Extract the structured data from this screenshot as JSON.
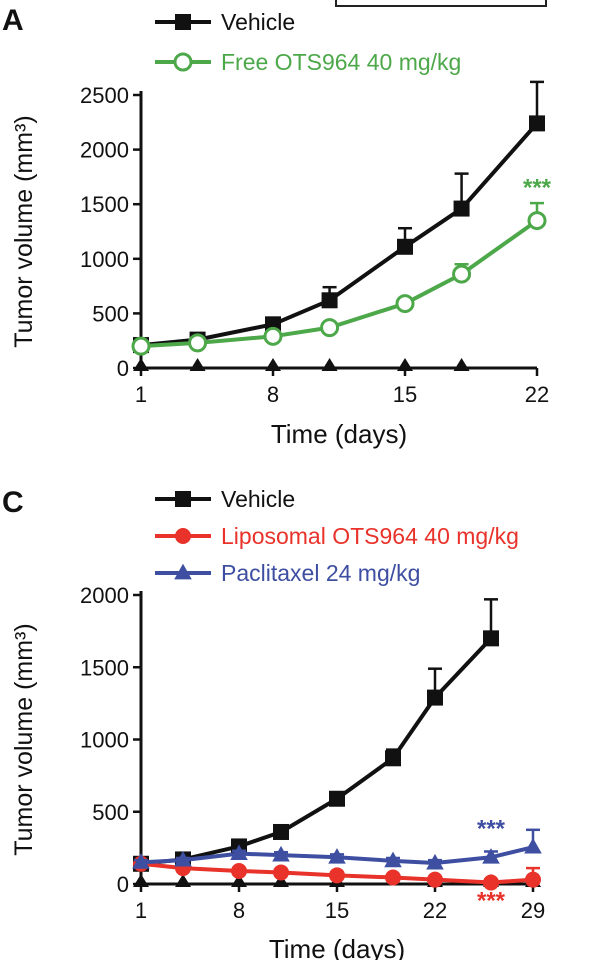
{
  "chart_data": [
    {
      "type": "line",
      "panel_label": "A",
      "xlabel": "Time (days)",
      "ylabel": "Tumor volume (mm³)",
      "xlim": [
        1,
        22
      ],
      "ylim": [
        0,
        2500
      ],
      "xticks": [
        1,
        8,
        15,
        22
      ],
      "yticks": [
        0,
        500,
        1000,
        1500,
        2000,
        2500
      ],
      "dosing_days": [
        1,
        4,
        8,
        11,
        15,
        18
      ],
      "series": [
        {
          "name": "Vehicle",
          "color": "#111111",
          "marker": "square-filled",
          "x": [
            1,
            4,
            8,
            11,
            15,
            18,
            22
          ],
          "y": [
            210,
            260,
            400,
            620,
            1110,
            1460,
            2240
          ],
          "err": [
            15,
            20,
            40,
            120,
            170,
            320,
            380
          ]
        },
        {
          "name": "Free OTS964  40 mg/kg",
          "color": "#4da84a",
          "marker": "circle-open",
          "x": [
            1,
            4,
            8,
            11,
            15,
            18,
            22
          ],
          "y": [
            200,
            230,
            290,
            370,
            590,
            860,
            1350
          ],
          "err": [
            10,
            15,
            20,
            30,
            30,
            90,
            160
          ]
        }
      ],
      "annotations": [
        {
          "text": "***",
          "x": 22,
          "y": 1580,
          "color": "#4da84a"
        }
      ]
    },
    {
      "type": "line",
      "panel_label": "C",
      "xlabel": "Time (days)",
      "ylabel": "Tumor volume (mm³)",
      "xlim": [
        1,
        29
      ],
      "ylim": [
        0,
        2000
      ],
      "xticks": [
        1,
        8,
        15,
        22,
        29
      ],
      "yticks": [
        0,
        500,
        1000,
        1500,
        2000
      ],
      "dosing_days": [
        1,
        4,
        8,
        11,
        15,
        22,
        26,
        29
      ],
      "series": [
        {
          "name": "Vehicle",
          "color": "#111111",
          "marker": "square-filled",
          "x": [
            1,
            4,
            8,
            11,
            15,
            19,
            22,
            26
          ],
          "y": [
            140,
            170,
            260,
            360,
            590,
            870,
            1290,
            1700
          ],
          "err": [
            10,
            15,
            25,
            30,
            40,
            60,
            200,
            270
          ]
        },
        {
          "name": "Liposomal OTS964  40 mg/kg",
          "color": "#e8322a",
          "marker": "circle-filled",
          "x": [
            1,
            4,
            8,
            11,
            15,
            19,
            22,
            26,
            29
          ],
          "y": [
            140,
            110,
            90,
            80,
            60,
            45,
            30,
            10,
            30
          ],
          "err": [
            10,
            10,
            10,
            10,
            10,
            10,
            10,
            20,
            80
          ]
        },
        {
          "name": "Paclitaxel  24 mg/kg",
          "color": "#3e4fa2",
          "marker": "triangle-filled",
          "x": [
            1,
            4,
            8,
            11,
            15,
            19,
            22,
            26,
            29
          ],
          "y": [
            150,
            165,
            210,
            200,
            185,
            160,
            145,
            185,
            255
          ],
          "err": [
            15,
            15,
            20,
            20,
            20,
            20,
            20,
            40,
            120
          ]
        }
      ],
      "annotations": [
        {
          "text": "***",
          "x": 26,
          "y": 330,
          "color": "#3e4fa2"
        },
        {
          "text": "***",
          "x": 26,
          "y": -170,
          "color": "#e8322a"
        }
      ]
    }
  ]
}
